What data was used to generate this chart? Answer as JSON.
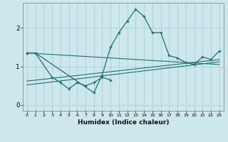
{
  "xlabel": "Humidex (Indice chaleur)",
  "xlim": [
    -0.5,
    23.5
  ],
  "ylim": [
    -0.15,
    2.65
  ],
  "yticks": [
    0,
    1,
    2
  ],
  "xticks": [
    0,
    1,
    2,
    3,
    4,
    5,
    6,
    7,
    8,
    9,
    10,
    11,
    12,
    13,
    14,
    15,
    16,
    17,
    18,
    19,
    20,
    21,
    22,
    23
  ],
  "bg_color": "#cde8ec",
  "grid_color": "#aacfd5",
  "line_color": "#1e7070",
  "curve1_x": [
    0,
    1,
    3,
    4,
    5,
    6,
    7,
    8,
    9,
    10
  ],
  "curve1_y": [
    1.35,
    1.35,
    0.72,
    0.58,
    0.42,
    0.58,
    0.5,
    0.58,
    0.72,
    0.65
  ],
  "curve2_x": [
    0,
    1,
    8,
    9,
    10,
    11,
    12,
    13,
    14,
    15,
    16,
    17,
    18,
    19,
    20,
    21,
    22,
    23
  ],
  "curve2_y": [
    1.35,
    1.35,
    0.32,
    0.78,
    1.5,
    1.88,
    2.18,
    2.48,
    2.3,
    1.88,
    1.88,
    1.28,
    1.22,
    1.1,
    1.05,
    1.25,
    1.18,
    1.4
  ],
  "trend1_x": [
    0,
    23
  ],
  "trend1_y": [
    1.35,
    1.05
  ],
  "trend2_x": [
    0,
    23
  ],
  "trend2_y": [
    0.62,
    1.18
  ],
  "trend3_x": [
    0,
    23
  ],
  "trend3_y": [
    0.52,
    1.12
  ]
}
